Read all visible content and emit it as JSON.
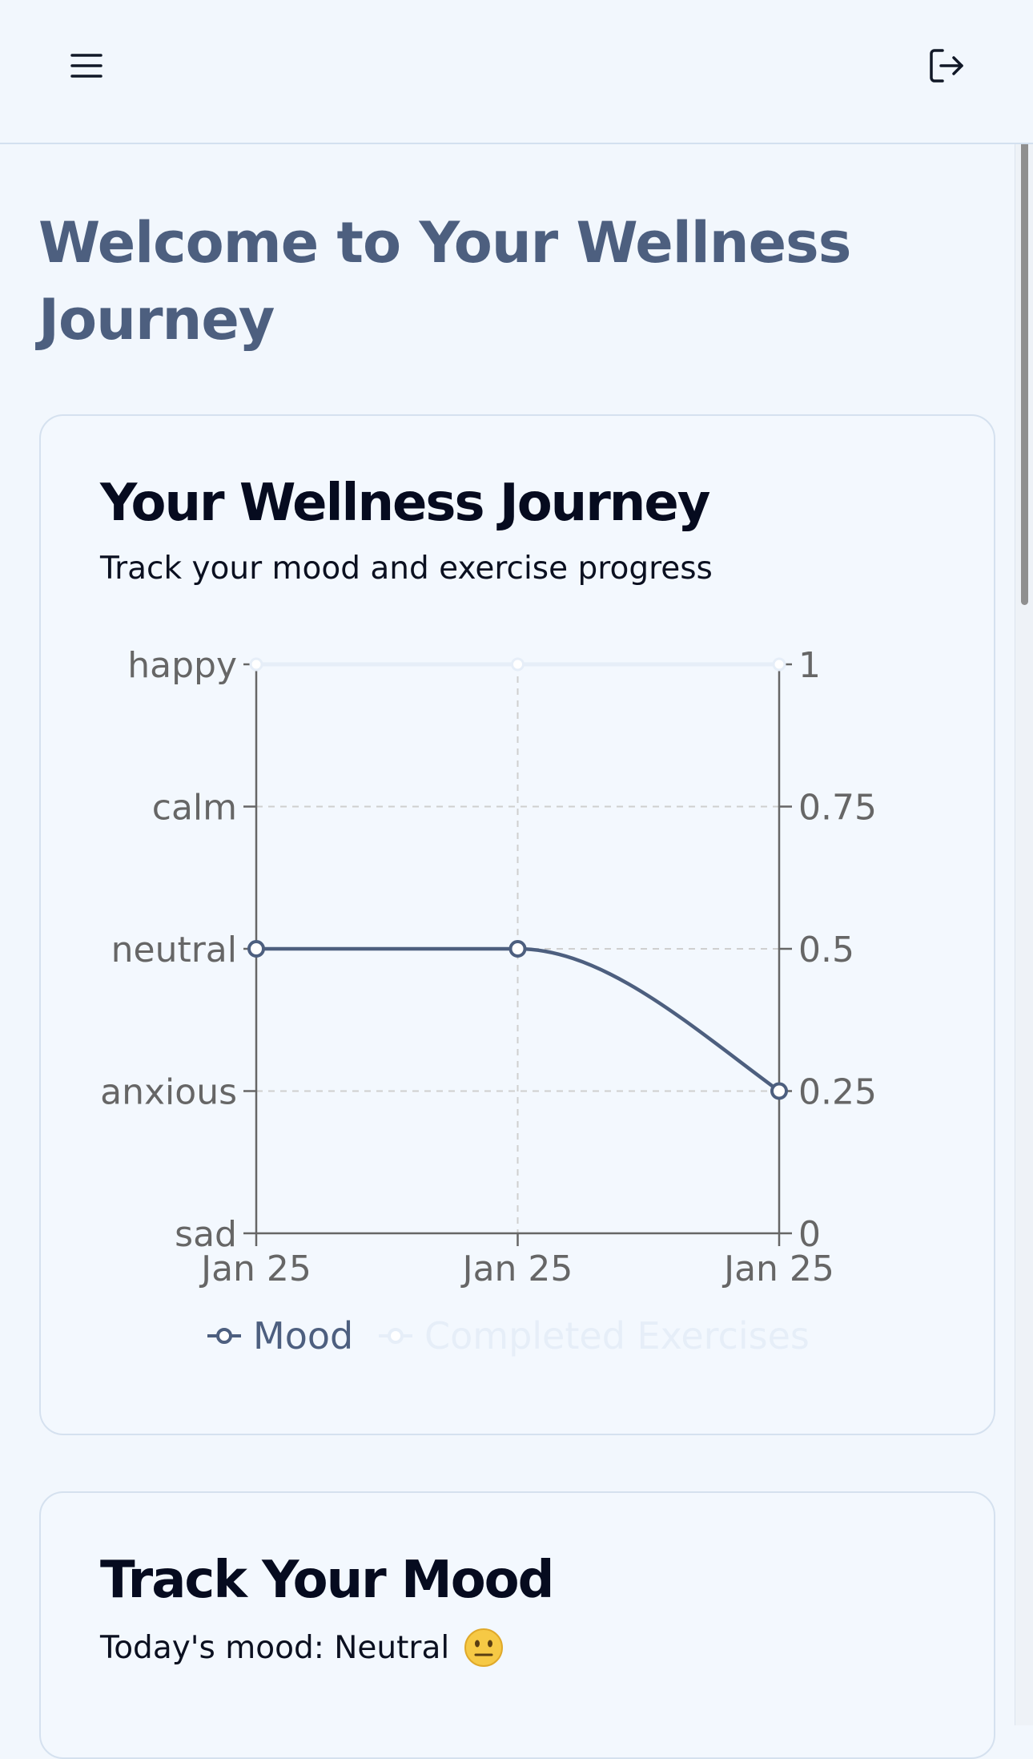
{
  "header": {
    "menu_icon": "hamburger-menu-icon",
    "logout_icon": "logout-icon"
  },
  "page": {
    "welcome_title": "Welcome to Your Wellness Journey"
  },
  "journey_card": {
    "title": "Your Wellness Journey",
    "subtitle": "Track your mood and exercise progress"
  },
  "mood_card": {
    "title": "Track Your Mood",
    "today_label": "Today's mood: Neutral",
    "emoji_icon": "neutral-face-icon"
  },
  "colors": {
    "background": "#f2f7fd",
    "mood_series": "#4d5f7f",
    "exercise_series": "#e6eef8",
    "heading": "#4d5f7f"
  },
  "chart_data": {
    "type": "line",
    "x": [
      "Jan 25",
      "Jan 25",
      "Jan 25"
    ],
    "y_left_categories": [
      "sad",
      "anxious",
      "calm",
      "neutral",
      "happy"
    ],
    "y_left_ticks": [
      "happy",
      "calm",
      "neutral",
      "anxious",
      "sad"
    ],
    "y_right_ticks": [
      "1",
      "0.75",
      "0.5",
      "0.25",
      "0"
    ],
    "y_right_range": [
      0,
      1
    ],
    "series": [
      {
        "name": "Mood",
        "axis": "left",
        "values": [
          "neutral",
          "neutral",
          "anxious"
        ],
        "numeric": [
          0.5,
          0.5,
          0.25
        ],
        "color": "#4d5f7f"
      },
      {
        "name": "Completed Exercises",
        "axis": "right",
        "values": [
          1,
          1,
          1
        ],
        "color": "#e6eef8",
        "faded": true
      }
    ],
    "grid": true,
    "legend_placement": "bottom"
  }
}
